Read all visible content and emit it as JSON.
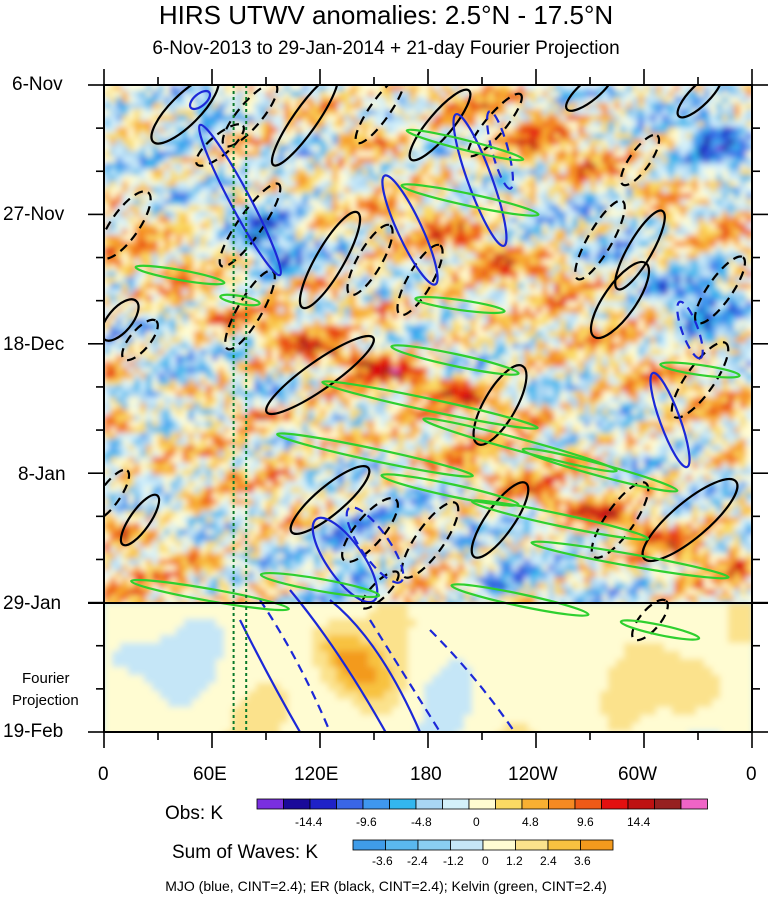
{
  "chart_data": {
    "type": "heatmap",
    "title": "HIRS UTWV anomalies: 2.5°N - 17.5°N",
    "subtitle": "6-Nov-2013 to 29-Jan-2014 + 21-day Fourier Projection",
    "x_tick_labels": [
      "0",
      "60E",
      "120E",
      "180",
      "120W",
      "60W",
      "0"
    ],
    "y_tick_labels": [
      "6-Nov",
      "27-Nov",
      "18-Dec",
      "8-Jan",
      "29-Jan",
      "19-Feb"
    ],
    "y_tick_day_offsets": [
      0,
      21,
      42,
      63,
      84,
      105
    ],
    "projection_start_label": "29-Jan",
    "projection_label_lines": [
      "Fourier",
      "Projection"
    ],
    "reference_lines_longitude": [
      72,
      79
    ],
    "legend": {
      "obs_label": "Obs: K",
      "obs_colors": [
        "#7a2fe0",
        "#1a0a9a",
        "#1f22c8",
        "#3a66e6",
        "#3f97ee",
        "#33b6ee",
        "#a9d6f3",
        "#d3f0fa",
        "#fffcd2",
        "#fbda63",
        "#f8b032",
        "#f58a22",
        "#ee5a17",
        "#e31010",
        "#be1212",
        "#962020",
        "#ef64c6"
      ],
      "obs_ticks": [
        "-14.4",
        "-9.6",
        "-4.8",
        "0",
        "4.8",
        "9.6",
        "14.4"
      ],
      "sum_label": "Sum of Waves: K",
      "sum_colors": [
        "#3f9ce8",
        "#5ab8ee",
        "#8acff2",
        "#c5e6f7",
        "#fffcd2",
        "#fbe28c",
        "#f8c240",
        "#f39a1d"
      ],
      "sum_ticks": [
        "-3.6",
        "-2.4",
        "-1.2",
        "0",
        "1.2",
        "2.4",
        "3.6"
      ]
    },
    "colors": {
      "mjo": "#1c28d8",
      "er": "#000000",
      "kelvin": "#2fd02f"
    },
    "footer": "MJO (blue, CINT=2.4); ER (black, CINT=2.4); Kelvin (green, CINT=2.4)"
  }
}
